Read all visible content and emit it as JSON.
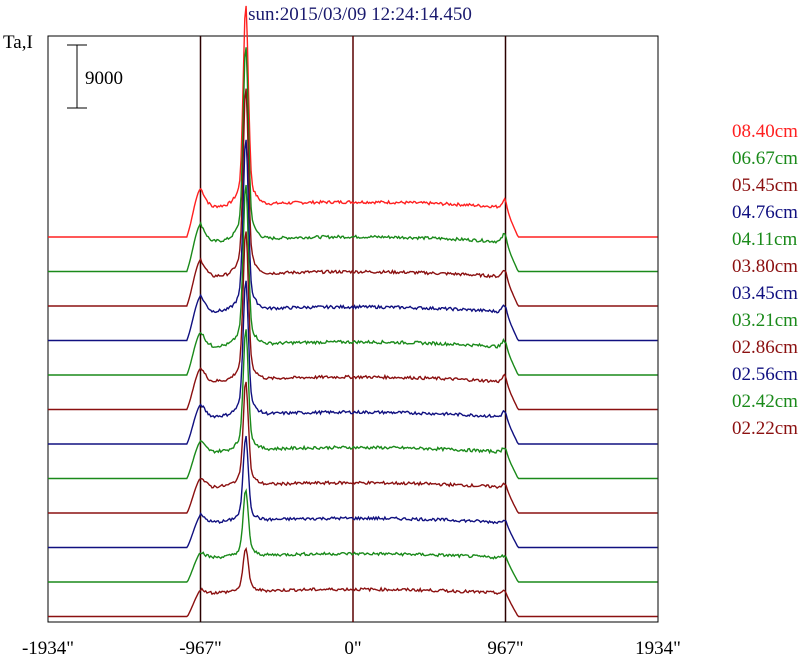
{
  "chart_data": {
    "type": "line",
    "title": "sun:2015/03/09 12:24:14.450",
    "ylabel": "Ta,I",
    "scale_bar_label": "9000",
    "x_ticks": [
      {
        "value": -1934,
        "label": "-1934\""
      },
      {
        "value": -967,
        "label": "-967\""
      },
      {
        "value": 0,
        "label": "0\""
      },
      {
        "value": 967,
        "label": "967\""
      },
      {
        "value": 1934,
        "label": "1934\""
      }
    ],
    "xlim": [
      -1934,
      1934
    ],
    "vertical_lines": [
      -967,
      0,
      967
    ],
    "line_colors": {
      "red": "#ff2020",
      "green": "#1a8a1a",
      "darkred": "#8b1010",
      "blue": "#101080"
    },
    "series": [
      {
        "name": "08.40cm",
        "color": "#ff2020",
        "peak": 1.0
      },
      {
        "name": "06.67cm",
        "color": "#1a8a1a",
        "peak": 0.97
      },
      {
        "name": "05.45cm",
        "color": "#8b1010",
        "peak": 0.93
      },
      {
        "name": "04.76cm",
        "color": "#101080",
        "peak": 0.86
      },
      {
        "name": "04.11cm",
        "color": "#1a8a1a",
        "peak": 0.8
      },
      {
        "name": "03.80cm",
        "color": "#8b1010",
        "peak": 0.75
      },
      {
        "name": "03.45cm",
        "color": "#101080",
        "peak": 0.68
      },
      {
        "name": "03.21cm",
        "color": "#1a8a1a",
        "peak": 0.6
      },
      {
        "name": "02.86cm",
        "color": "#8b1010",
        "peak": 0.52
      },
      {
        "name": "02.56cm",
        "color": "#101080",
        "peak": 0.42
      },
      {
        "name": "02.42cm",
        "color": "#1a8a1a",
        "peak": 0.33
      },
      {
        "name": "02.22cm",
        "color": "#8b1010",
        "peak": 0.22
      }
    ]
  }
}
